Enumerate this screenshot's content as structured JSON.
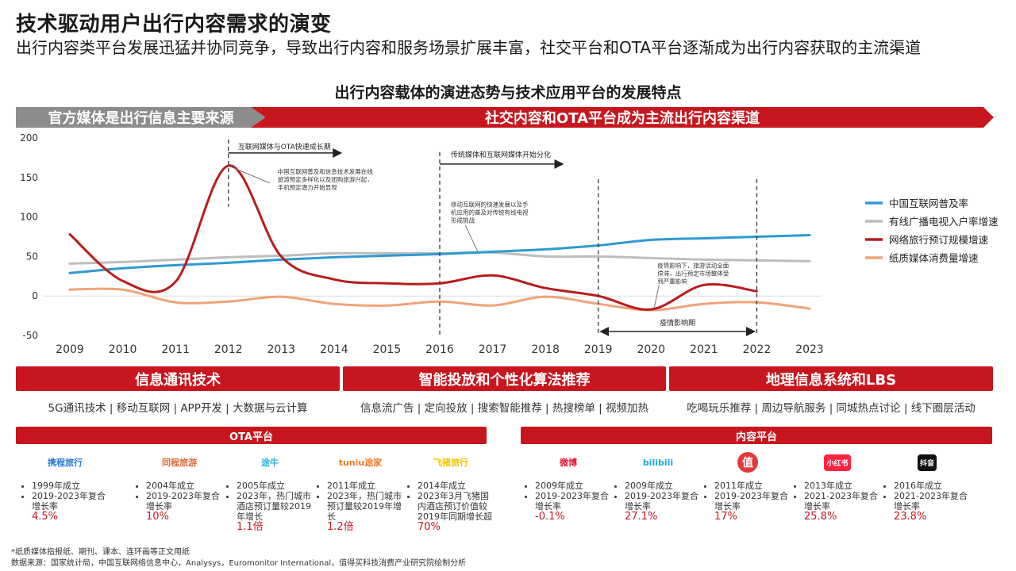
{
  "header": {
    "title": "技术驱动用户出行内容需求的演变",
    "subtitle": "出行内容类平台发展迅猛并协同竞争，导致出行内容和服务场景扩展丰富，社交平台和OTA平台逐渐成为出行内容获取的主流渠道",
    "chart_title": "出行内容载体的演进态势与技术应用平台的发展特点"
  },
  "phases": {
    "left": "官方媒体是出行信息主要来源",
    "right": "社交内容和OTA平台成为主流出行内容渠道"
  },
  "chart_data": {
    "type": "line",
    "x": [
      2009,
      2010,
      2011,
      2012,
      2013,
      2014,
      2015,
      2016,
      2017,
      2018,
      2019,
      2020,
      2021,
      2022,
      2023
    ],
    "ylim": [
      -50,
      200
    ],
    "yticks": [
      -50,
      0,
      50,
      100,
      150,
      200
    ],
    "grid": false,
    "legend_position": "right",
    "series": [
      {
        "name": "中国互联网普及率",
        "color": "#2e9ad0",
        "values": [
          29,
          35,
          39,
          42,
          46,
          49,
          51,
          53,
          56,
          59,
          64,
          71,
          73,
          75,
          77
        ]
      },
      {
        "name": "有线广播电视入户率增速",
        "color": "#bdbdbd",
        "values": [
          41,
          43,
          46,
          49,
          51,
          54,
          54,
          54,
          55,
          50,
          50,
          48,
          46,
          45,
          44
        ]
      },
      {
        "name": "网络旅行预订规模增速",
        "color": "#b71c1c",
        "values": [
          78,
          19,
          18,
          165,
          50,
          21,
          16,
          16,
          26,
          10,
          0,
          -17,
          14,
          6,
          null
        ]
      },
      {
        "name": "纸质媒体消费量增速",
        "color": "#f0a37a",
        "values": [
          8,
          8,
          -8,
          -7,
          -1,
          -10,
          -12,
          -7,
          -12,
          -1,
          -10,
          -18,
          -10,
          -8,
          -16
        ]
      }
    ],
    "annotations": {
      "period_a": "互联网媒体与OTA快速成长期",
      "period_b": "传统媒体和互联网媒体开始分化",
      "period_c": "疫情影响期",
      "note_2012": "中国互联网普及和信息技术发展在线旅游预定多样化以及团购旅游兴起，手机预定潜力开始显现",
      "note_2016": "移动互联网的快速发展以及手机应用的普及对传统有线电视形成挑战",
      "note_2020": "疫情影响下，旅游活动全面停滞，出行预定市场整体受到严重影响"
    }
  },
  "tech": [
    {
      "title": "信息通讯技术",
      "items": "5G通讯技术 | 移动互联网 | APP开发 | 大数据与云计算"
    },
    {
      "title": "智能投放和个性化算法推荐",
      "items": "信息流广告 | 定向投放 | 搜索智能推荐 | 热搜榜单 | 视频加热"
    },
    {
      "title": "地理信息系统和LBS",
      "items": "吃喝玩乐推荐 | 周边导航服务 | 同城热点讨论 | 线下圈层活动"
    }
  ],
  "ota": {
    "title": "OTA平台",
    "platforms": [
      {
        "logo": "携程旅行",
        "logo_color": "#2a7ad6",
        "line1": "1999年成立",
        "line2": "2019-2023年复合增长率",
        "value": "4.5%"
      },
      {
        "logo": "同程旅游",
        "logo_color": "#e2683c",
        "line1": "2004年成立",
        "line2": "2019-2023年复合增长率",
        "value": "10%"
      },
      {
        "logo": "途牛",
        "logo_color": "#27b3d6",
        "line1": "2005年成立",
        "line2": "2023年，热门城市酒店预订量较2019年增长",
        "value": "1.1倍"
      },
      {
        "logo": "tuniu途家",
        "logo_color": "#f07a23",
        "line1": "2011年成立",
        "line2": "2023年，热门城市预订量较2019年增长",
        "value": "1.2倍"
      },
      {
        "logo": "飞猪旅行",
        "logo_color": "#f5c400",
        "line1": "2014年成立",
        "line2": "2023年3月飞猪国内酒店预订价值较2019年同期增长超",
        "value": "70%"
      }
    ]
  },
  "content": {
    "title": "内容平台",
    "platforms": [
      {
        "logo": "微博",
        "logo_color": "#e6162d",
        "line1": "2009年成立",
        "line2": "2019-2023年复合增长率",
        "value": "-0.1%"
      },
      {
        "logo": "bilibili",
        "logo_color": "#1fa4e0",
        "line1": "2009年成立",
        "line2": "2019-2023年复合增长率",
        "value": "27.1%"
      },
      {
        "logo": "值",
        "logo_color": "#e4393c",
        "line1": "2011年成立",
        "line2": "2019-2023年复合增长率",
        "value": "17%"
      },
      {
        "logo": "小红书",
        "logo_color": "#ff2442",
        "line1": "2013年成立",
        "line2": "2021-2023年复合增长率",
        "value": "25.8%"
      },
      {
        "logo": "抖音",
        "logo_color": "#111111",
        "line1": "2016年成立",
        "line2": "2021-2023年复合增长率",
        "value": "23.8%"
      }
    ]
  },
  "footer": {
    "footnote": "*纸质媒体指报纸、期刊、课本、连环画等正文用纸",
    "source": "数据来源：国家统计局，中国互联网络信息中心，Analysys，Euromonitor International，值得买科技消费产业研究院绘制分析"
  }
}
